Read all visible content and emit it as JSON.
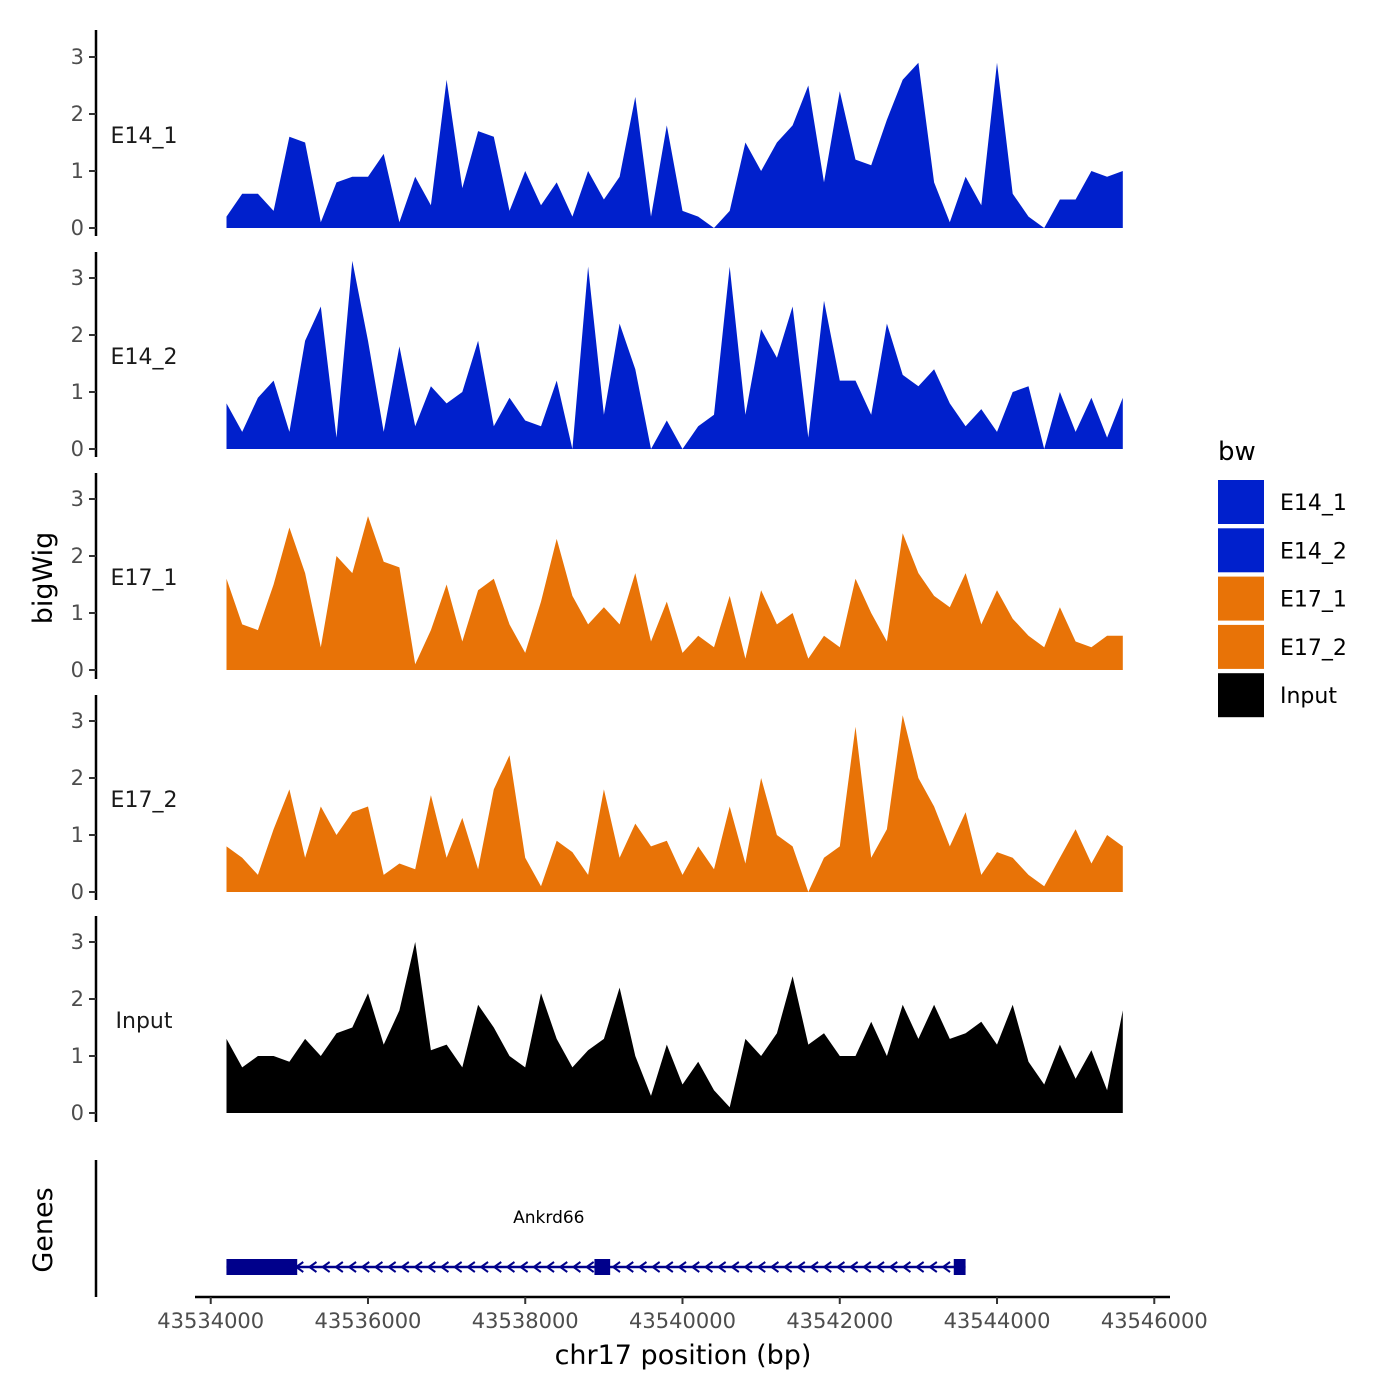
{
  "chart_data": {
    "type": "area",
    "title": "",
    "xlabel": "chr17 position (bp)",
    "ylabel": "bigWig",
    "genes_label": "Genes",
    "xlim": [
      43533800,
      43546200
    ],
    "ylim": [
      0,
      3.4
    ],
    "x_ticks": [
      43534000,
      43536000,
      43538000,
      43540000,
      43542000,
      43544000,
      43546000
    ],
    "x_tick_labels": [
      "43534000",
      "43536000",
      "43538000",
      "43540000",
      "43542000",
      "43544000",
      "43546000"
    ],
    "y_ticks": [
      0,
      1,
      2,
      3
    ],
    "y_tick_labels": [
      "0",
      "1",
      "2",
      "3"
    ],
    "legend": {
      "title": "bw",
      "entries": [
        {
          "label": "E14_1",
          "color": "#0020CC"
        },
        {
          "label": "E14_2",
          "color": "#0020CC"
        },
        {
          "label": "E17_1",
          "color": "#E87307"
        },
        {
          "label": "E17_2",
          "color": "#E87307"
        },
        {
          "label": "Input",
          "color": "#000000"
        }
      ]
    },
    "x": [
      43534200,
      43534400,
      43534600,
      43534800,
      43535000,
      43535200,
      43535400,
      43535600,
      43535800,
      43536000,
      43536200,
      43536400,
      43536600,
      43536800,
      43537000,
      43537200,
      43537400,
      43537600,
      43537800,
      43538000,
      43538200,
      43538400,
      43538600,
      43538800,
      43539000,
      43539200,
      43539400,
      43539600,
      43539800,
      43540000,
      43540200,
      43540400,
      43540600,
      43540800,
      43541000,
      43541200,
      43541400,
      43541600,
      43541800,
      43542000,
      43542200,
      43542400,
      43542600,
      43542800,
      43543000,
      43543200,
      43543400,
      43543600,
      43543800,
      43544000,
      43544200,
      43544400,
      43544600,
      43544800,
      43545000,
      43545200,
      43545400,
      43545600
    ],
    "series": [
      {
        "name": "E14_1",
        "color": "#0020CC",
        "values": [
          0.2,
          0.6,
          0.6,
          0.3,
          1.6,
          1.5,
          0.1,
          0.8,
          0.9,
          0.9,
          1.3,
          0.1,
          0.9,
          0.4,
          2.6,
          0.7,
          1.7,
          1.6,
          0.3,
          1.0,
          0.4,
          0.8,
          0.2,
          1.0,
          0.5,
          0.9,
          2.3,
          0.2,
          1.8,
          0.3,
          0.2,
          0.0,
          0.3,
          1.5,
          1.0,
          1.5,
          1.8,
          2.5,
          0.8,
          2.4,
          1.2,
          1.1,
          1.9,
          2.6,
          2.9,
          0.8,
          0.1,
          0.9,
          0.4,
          2.9,
          0.6,
          0.2,
          0.0,
          0.5,
          0.5,
          1.0,
          0.9,
          1.0
        ]
      },
      {
        "name": "E14_2",
        "color": "#0020CC",
        "values": [
          0.8,
          0.3,
          0.9,
          1.2,
          0.3,
          1.9,
          2.5,
          0.2,
          3.3,
          1.9,
          0.3,
          1.8,
          0.4,
          1.1,
          0.8,
          1.0,
          1.9,
          0.4,
          0.9,
          0.5,
          0.4,
          1.2,
          0.0,
          3.2,
          0.6,
          2.2,
          1.4,
          0.0,
          0.5,
          0.0,
          0.4,
          0.6,
          3.2,
          0.6,
          2.1,
          1.6,
          2.5,
          0.2,
          2.6,
          1.2,
          1.2,
          0.6,
          2.2,
          1.3,
          1.1,
          1.4,
          0.8,
          0.4,
          0.7,
          0.3,
          1.0,
          1.1,
          0.0,
          1.0,
          0.3,
          0.9,
          0.2,
          0.9
        ]
      },
      {
        "name": "E17_1",
        "color": "#E87307",
        "values": [
          1.6,
          0.8,
          0.7,
          1.5,
          2.5,
          1.7,
          0.4,
          2.0,
          1.7,
          2.7,
          1.9,
          1.8,
          0.1,
          0.7,
          1.5,
          0.5,
          1.4,
          1.6,
          0.8,
          0.3,
          1.2,
          2.3,
          1.3,
          0.8,
          1.1,
          0.8,
          1.7,
          0.5,
          1.2,
          0.3,
          0.6,
          0.4,
          1.3,
          0.2,
          1.4,
          0.8,
          1.0,
          0.2,
          0.6,
          0.4,
          1.6,
          1.0,
          0.5,
          2.4,
          1.7,
          1.3,
          1.1,
          1.7,
          0.8,
          1.4,
          0.9,
          0.6,
          0.4,
          1.1,
          0.5,
          0.4,
          0.6,
          0.6
        ]
      },
      {
        "name": "E17_2",
        "color": "#E87307",
        "values": [
          0.8,
          0.6,
          0.3,
          1.1,
          1.8,
          0.6,
          1.5,
          1.0,
          1.4,
          1.5,
          0.3,
          0.5,
          0.4,
          1.7,
          0.6,
          1.3,
          0.4,
          1.8,
          2.4,
          0.6,
          0.1,
          0.9,
          0.7,
          0.3,
          1.8,
          0.6,
          1.2,
          0.8,
          0.9,
          0.3,
          0.8,
          0.4,
          1.5,
          0.5,
          2.0,
          1.0,
          0.8,
          0.0,
          0.6,
          0.8,
          2.9,
          0.6,
          1.1,
          3.1,
          2.0,
          1.5,
          0.8,
          1.4,
          0.3,
          0.7,
          0.6,
          0.3,
          0.1,
          0.6,
          1.1,
          0.5,
          1.0,
          0.8
        ]
      },
      {
        "name": "Input",
        "color": "#000000",
        "values": [
          1.3,
          0.8,
          1.0,
          1.0,
          0.9,
          1.3,
          1.0,
          1.4,
          1.5,
          2.1,
          1.2,
          1.8,
          3.0,
          1.1,
          1.2,
          0.8,
          1.9,
          1.5,
          1.0,
          0.8,
          2.1,
          1.3,
          0.8,
          1.1,
          1.3,
          2.2,
          1.0,
          0.3,
          1.2,
          0.5,
          0.9,
          0.4,
          0.1,
          1.3,
          1.0,
          1.4,
          2.4,
          1.2,
          1.4,
          1.0,
          1.0,
          1.6,
          1.0,
          1.9,
          1.3,
          1.9,
          1.3,
          1.4,
          1.6,
          1.2,
          1.9,
          0.9,
          0.5,
          1.2,
          0.6,
          1.1,
          0.4,
          1.8
        ]
      }
    ],
    "genes": [
      {
        "name": "Ankrd66",
        "start": 43534200,
        "end": 43543600,
        "strand": "-",
        "color": "#00008B",
        "exons": [
          [
            43534200,
            43535100
          ],
          [
            43538880,
            43539080
          ],
          [
            43543450,
            43543600
          ]
        ]
      }
    ]
  }
}
